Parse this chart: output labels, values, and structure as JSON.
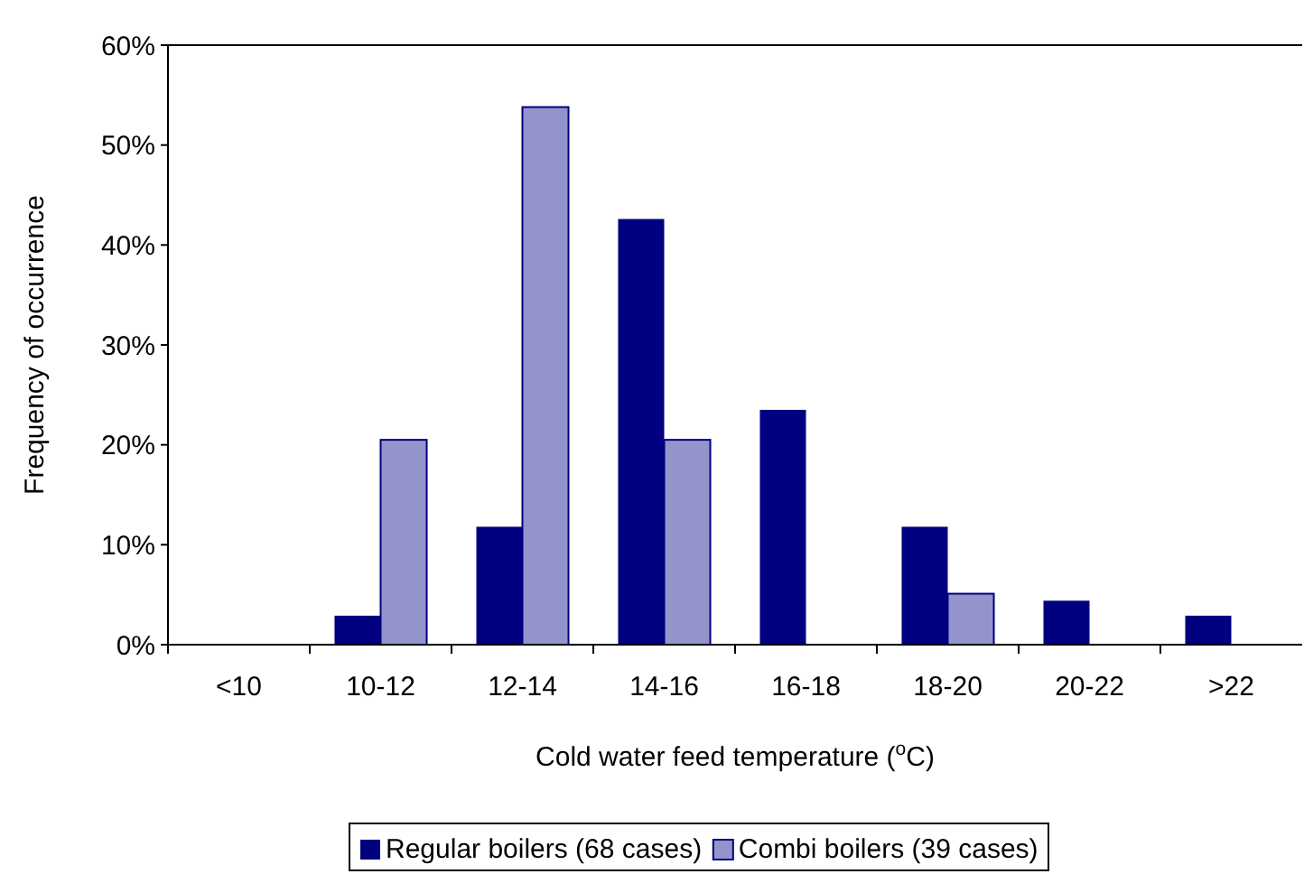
{
  "chart_data": {
    "type": "bar",
    "xlabel": "Cold water feed temperature ($^{o}$C)",
    "ylabel": "Frequency of occurrence",
    "categories": [
      "<10",
      "10-12",
      "12-14",
      "14-16",
      "16-18",
      "18-20",
      "20-22",
      ">22"
    ],
    "series": [
      {
        "name": "Regular boilers (68 cases)",
        "color": "#000080",
        "values": [
          0,
          2.9,
          11.8,
          42.6,
          23.5,
          11.8,
          4.4,
          2.9
        ]
      },
      {
        "name": "Combi boilers (39 cases)",
        "color": "#9494cc",
        "values": [
          0,
          20.5,
          53.8,
          20.5,
          0,
          5.1,
          0,
          0
        ]
      }
    ],
    "ylim": [
      0,
      60
    ],
    "yticks": [
      {
        "value": 0,
        "label": "0%"
      },
      {
        "value": 10,
        "label": "10%"
      },
      {
        "value": 20,
        "label": "20%"
      },
      {
        "value": 30,
        "label": "30%"
      },
      {
        "value": 40,
        "label": "40%"
      },
      {
        "value": 50,
        "label": "50%"
      },
      {
        "value": 60,
        "label": "60%"
      }
    ],
    "grid": false,
    "legend": "bottom"
  }
}
